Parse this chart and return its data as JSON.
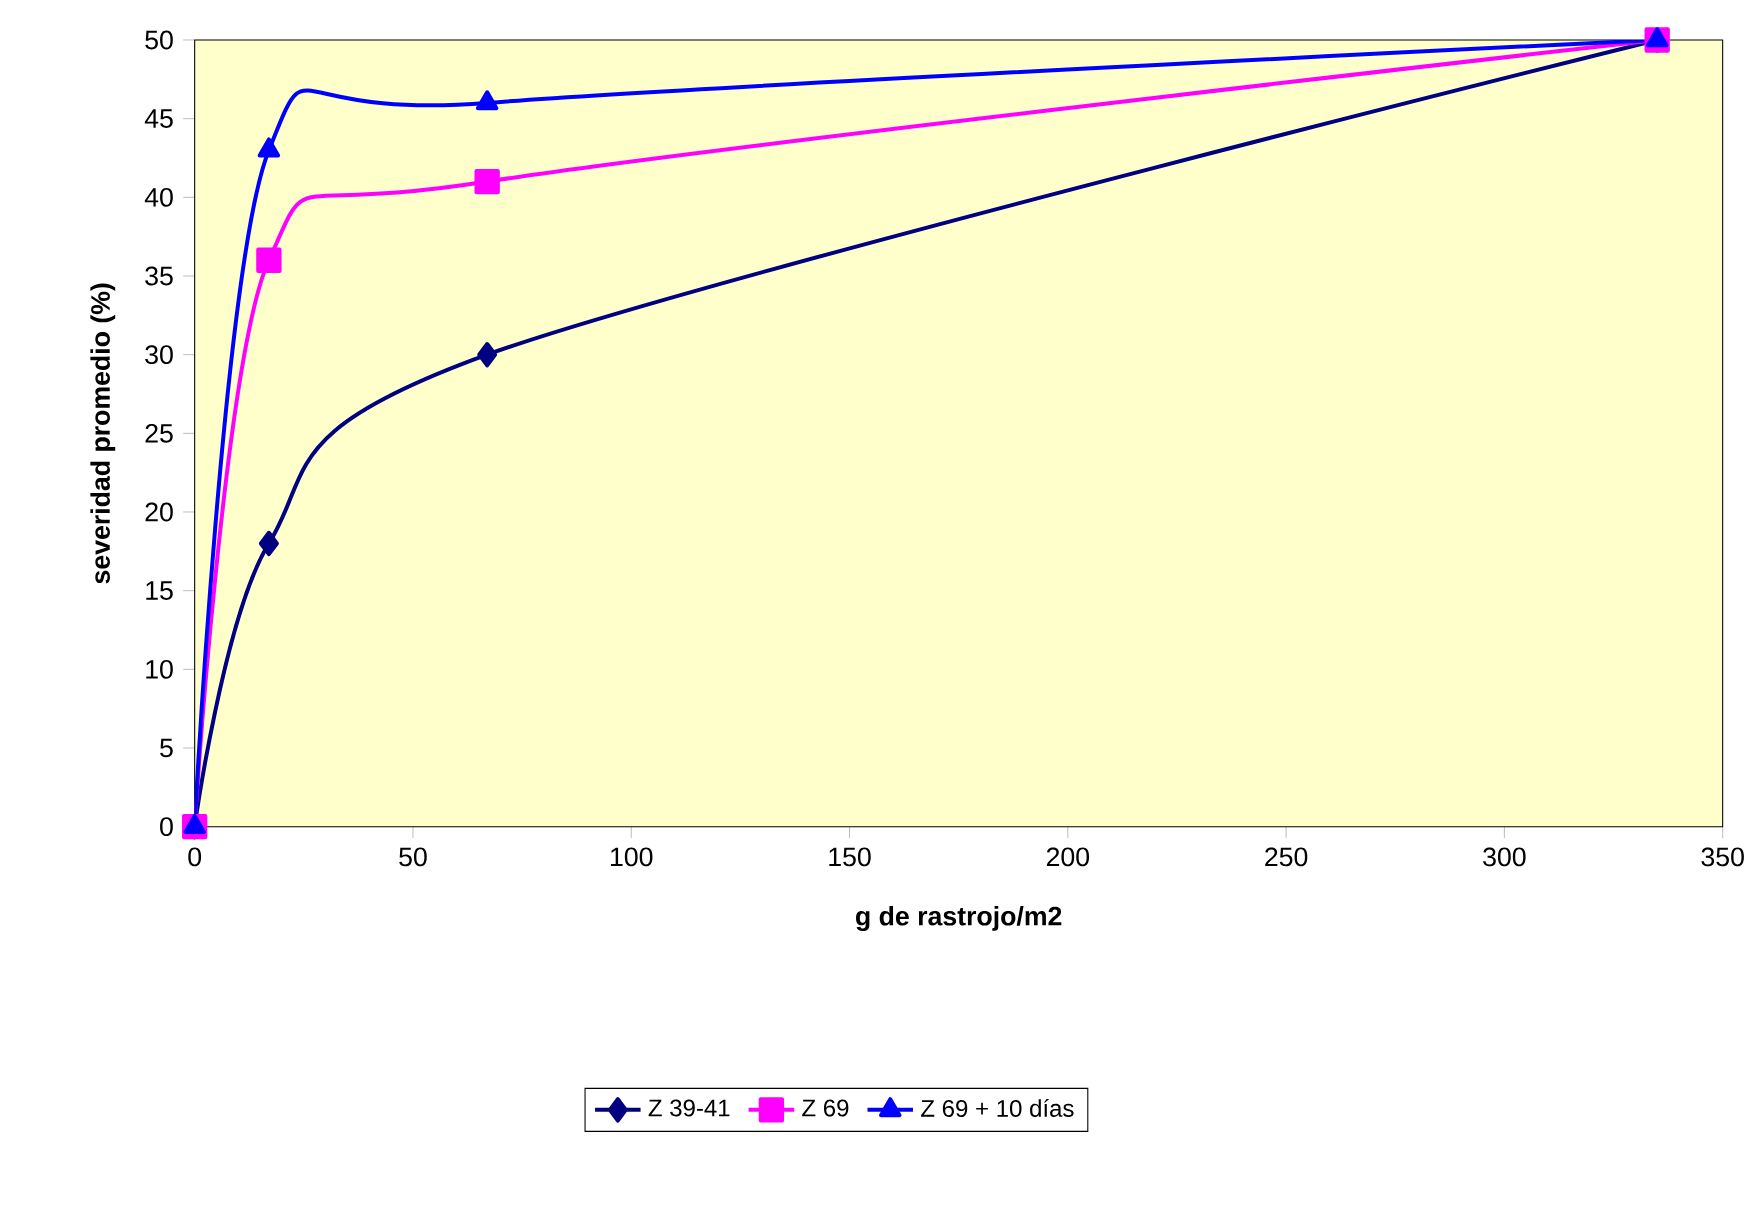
{
  "chart_data": {
    "type": "line",
    "xlabel": "g de rastrojo/m2",
    "ylabel": "severidad promedio (%)",
    "x": [
      0,
      17,
      67,
      335
    ],
    "series": [
      {
        "name": "Z 39-41",
        "color": "#000080",
        "values": [
          0,
          18,
          30,
          50
        ],
        "marker": "diamond"
      },
      {
        "name": "Z 69",
        "color": "#ff00ff",
        "values": [
          0,
          36,
          41,
          50
        ],
        "marker": "square"
      },
      {
        "name": "Z 69 + 10 días",
        "color": "#0000ff",
        "values": [
          0,
          43,
          46,
          50
        ],
        "marker": "triangle"
      }
    ],
    "xlim": [
      0,
      350
    ],
    "xticks": [
      0,
      50,
      100,
      150,
      200,
      250,
      300,
      350
    ],
    "ylim": [
      0,
      50
    ],
    "yticks": [
      0,
      5,
      10,
      15,
      20,
      25,
      30,
      35,
      40,
      45,
      50
    ],
    "grid": false,
    "legend": "bottom",
    "line_style": "solid"
  }
}
